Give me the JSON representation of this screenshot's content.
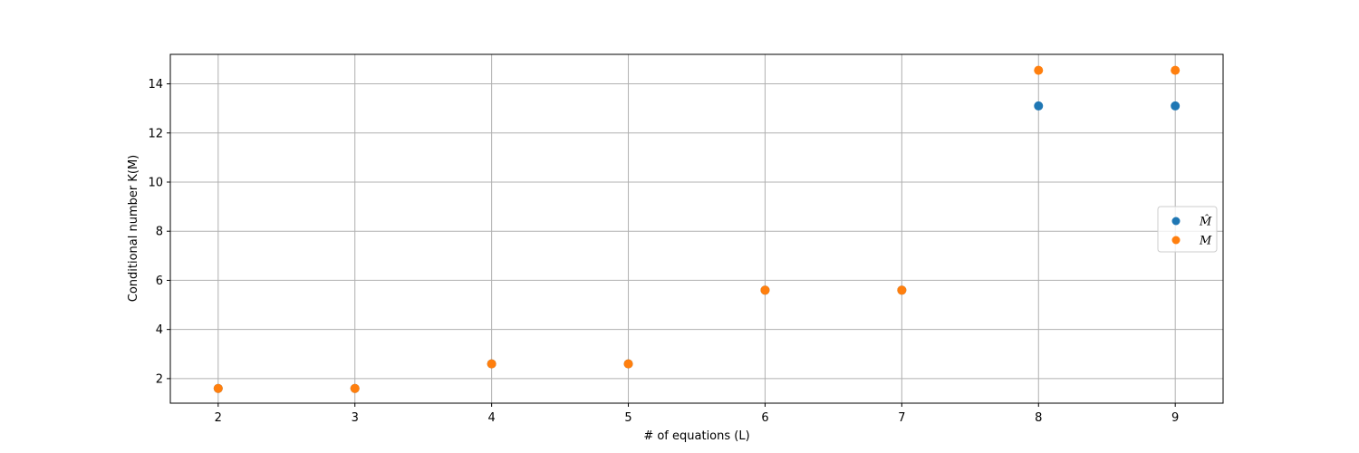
{
  "chart_data": {
    "type": "scatter",
    "title": "",
    "xlabel": "# of equations (L)",
    "ylabel": "Conditional number K(M)",
    "xlim": [
      1.65,
      9.35
    ],
    "ylim": [
      1.0,
      15.2
    ],
    "xticks": [
      2,
      3,
      4,
      5,
      6,
      7,
      8,
      9
    ],
    "yticks": [
      2,
      4,
      6,
      8,
      10,
      12,
      14
    ],
    "grid": true,
    "legend_placement": "center-right",
    "series": [
      {
        "name": "M̂",
        "color": "#1f77b4",
        "x": [
          2,
          3,
          4,
          5,
          6,
          7,
          8,
          9
        ],
        "y": [
          1.6,
          1.6,
          2.6,
          2.6,
          5.6,
          5.6,
          13.1,
          13.1
        ]
      },
      {
        "name": "M",
        "color": "#ff7f0e",
        "x": [
          2,
          3,
          4,
          5,
          6,
          7,
          8,
          9
        ],
        "y": [
          1.6,
          1.6,
          2.6,
          2.6,
          5.6,
          5.6,
          14.55,
          14.55
        ]
      }
    ]
  }
}
